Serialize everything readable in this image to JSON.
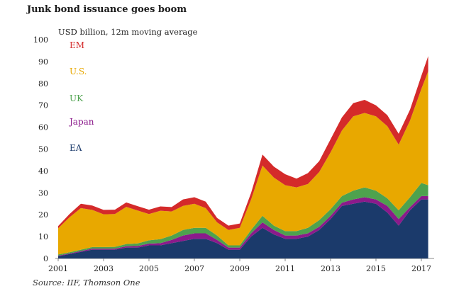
{
  "title": "Junk bond issuance goes boom",
  "source": "Source: IIF, Thomson One",
  "chart_data": {
    "type": "area",
    "stacked": true,
    "title": "Junk bond issuance goes boom",
    "ylabel": "USD billion, 12m moving average",
    "xlabel": "",
    "ylim": [
      0,
      100
    ],
    "y_ticks": [
      0,
      10,
      20,
      30,
      40,
      50,
      60,
      70,
      80,
      90,
      100
    ],
    "x_range": [
      2001.0,
      2017.5
    ],
    "x_ticks": [
      2001,
      2003,
      2005,
      2007,
      2009,
      2011,
      2013,
      2015,
      2017
    ],
    "x": [
      2001.0,
      2001.5,
      2002.0,
      2002.5,
      2003.0,
      2003.5,
      2004.0,
      2004.5,
      2005.0,
      2005.5,
      2006.0,
      2006.5,
      2007.0,
      2007.5,
      2008.0,
      2008.5,
      2009.0,
      2009.5,
      2010.0,
      2010.5,
      2011.0,
      2011.5,
      2012.0,
      2012.5,
      2013.0,
      2013.5,
      2014.0,
      2014.5,
      2015.0,
      2015.5,
      2016.0,
      2016.5,
      2017.0,
      2017.3
    ],
    "legend_position": "top-left",
    "grid": false,
    "series": [
      {
        "name": "EA",
        "color": "#1b3a6b",
        "values": [
          1,
          2,
          3,
          4,
          4,
          4,
          5,
          5,
          6,
          6,
          7,
          8,
          9,
          9,
          7,
          4,
          4,
          10,
          14,
          11,
          9,
          9,
          10,
          13,
          18,
          24,
          25,
          26,
          25,
          21,
          15,
          22,
          27,
          27
        ]
      },
      {
        "name": "Japan",
        "color": "#8b1a8b",
        "values": [
          0.3,
          0.3,
          0.4,
          0.5,
          0.5,
          0.5,
          0.6,
          0.7,
          0.8,
          1.0,
          1.5,
          2.5,
          2.5,
          2.5,
          1.5,
          1.0,
          1.0,
          1.5,
          2.5,
          2.0,
          1.5,
          1.5,
          1.5,
          1.5,
          1.5,
          1.5,
          2.0,
          2.0,
          2.0,
          3.0,
          3.0,
          1.5,
          1.5,
          1.5
        ]
      },
      {
        "name": "UK",
        "color": "#4ea24e",
        "values": [
          0.5,
          0.5,
          0.6,
          0.7,
          0.7,
          0.8,
          1.0,
          1.2,
          1.5,
          1.8,
          2.0,
          2.5,
          2.5,
          2.5,
          2.0,
          1.0,
          1.0,
          1.5,
          3.0,
          2.0,
          2.0,
          2.0,
          2.5,
          3.0,
          3.0,
          3.0,
          4.0,
          4.5,
          4.0,
          3.5,
          4.0,
          4.5,
          6.0,
          5.0
        ]
      },
      {
        "name": "U.S.",
        "color": "#e8a800",
        "values": [
          12,
          16,
          19,
          17,
          15,
          15,
          17,
          15,
          12,
          13,
          11,
          11,
          11,
          9,
          6,
          7,
          8,
          14,
          23,
          22,
          21,
          20,
          20,
          22,
          26,
          30,
          34,
          34,
          34,
          33,
          30,
          35,
          43,
          52
        ]
      },
      {
        "name": "EM",
        "color": "#d42a2a",
        "values": [
          1,
          1.5,
          2,
          2,
          2,
          2,
          2,
          2,
          2,
          2,
          2,
          3,
          3,
          3,
          2,
          2,
          2,
          3,
          5,
          5,
          5,
          4,
          5,
          5,
          6,
          6,
          6,
          6,
          5,
          5,
          5,
          5,
          6,
          7
        ]
      }
    ],
    "legend": [
      "EM",
      "U.S.",
      "UK",
      "Japan",
      "EA"
    ]
  }
}
